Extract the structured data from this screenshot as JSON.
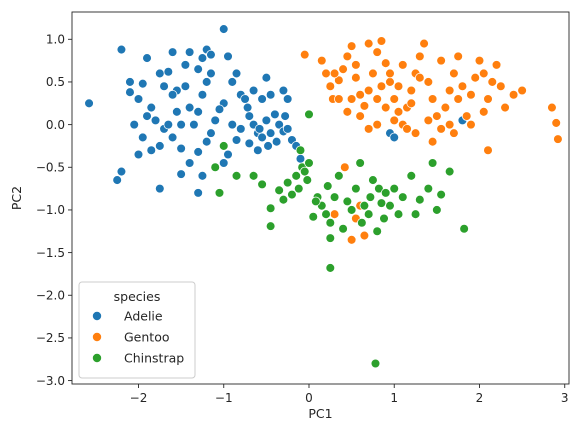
{
  "chart_data": {
    "type": "scatter",
    "xlabel": "PC1",
    "ylabel": "PC2",
    "xlim": [
      -2.78,
      3.05
    ],
    "ylim": [
      -3.04,
      1.32
    ],
    "xticks": [
      "−2",
      "−1",
      "0",
      "1",
      "2",
      "3"
    ],
    "xtick_values": [
      -2,
      -1,
      0,
      1,
      2,
      3
    ],
    "yticks": [
      "1.0",
      "0.5",
      "0.0",
      "−0.5",
      "−1.0",
      "−1.5",
      "−2.0",
      "−2.5",
      "−3.0"
    ],
    "ytick_values": [
      1.0,
      0.5,
      0.0,
      -0.5,
      -1.0,
      -1.5,
      -2.0,
      -2.5,
      -3.0
    ],
    "grid": false,
    "legend": {
      "title": "species",
      "placement": "lower-left"
    },
    "series": [
      {
        "name": "Adelie",
        "color": "#1f77b4",
        "points": [
          [
            -2.58,
            0.25
          ],
          [
            -2.2,
            0.88
          ],
          [
            -2.1,
            0.5
          ],
          [
            -2.1,
            0.38
          ],
          [
            -1.95,
            0.48
          ],
          [
            -1.9,
            0.78
          ],
          [
            -1.75,
            0.6
          ],
          [
            -1.65,
            0.62
          ],
          [
            -1.6,
            0.85
          ],
          [
            -1.55,
            0.4
          ],
          [
            -1.45,
            0.7
          ],
          [
            -1.4,
            0.85
          ],
          [
            -1.3,
            0.65
          ],
          [
            -1.25,
            0.78
          ],
          [
            -1.2,
            0.88
          ],
          [
            -1.15,
            0.82
          ],
          [
            -1.0,
            1.12
          ],
          [
            -0.9,
            0.5
          ],
          [
            -0.85,
            0.6
          ],
          [
            -0.8,
            0.35
          ],
          [
            -0.75,
            0.3
          ],
          [
            -0.72,
            0.2
          ],
          [
            -0.7,
            0.1
          ],
          [
            -0.65,
            0.0
          ],
          [
            -0.6,
            -0.1
          ],
          [
            -0.58,
            -0.05
          ],
          [
            -0.5,
            0.05
          ],
          [
            -0.45,
            -0.1
          ],
          [
            -0.4,
            0.12
          ],
          [
            -0.38,
            -0.2
          ],
          [
            -0.35,
            0.0
          ],
          [
            -0.3,
            -0.08
          ],
          [
            -0.28,
            0.1
          ],
          [
            -0.25,
            -0.05
          ],
          [
            -0.2,
            -0.18
          ],
          [
            -0.15,
            -0.25
          ],
          [
            -0.1,
            -0.4
          ],
          [
            -0.3,
            0.4
          ],
          [
            -0.45,
            0.35
          ],
          [
            -0.55,
            0.3
          ],
          [
            -1.0,
            0.25
          ],
          [
            -1.05,
            0.18
          ],
          [
            -1.1,
            0.05
          ],
          [
            -1.15,
            -0.1
          ],
          [
            -1.2,
            -0.2
          ],
          [
            -1.3,
            -0.32
          ],
          [
            -1.4,
            -0.45
          ],
          [
            -1.5,
            -0.28
          ],
          [
            -1.6,
            -0.15
          ],
          [
            -1.7,
            -0.05
          ],
          [
            -1.8,
            0.05
          ],
          [
            -1.85,
            0.2
          ],
          [
            -1.9,
            0.1
          ],
          [
            -2.0,
            0.3
          ],
          [
            -2.05,
            0.0
          ],
          [
            -1.95,
            -0.15
          ],
          [
            -2.0,
            -0.35
          ],
          [
            -1.85,
            -0.3
          ],
          [
            -1.75,
            -0.25
          ],
          [
            -2.2,
            -0.55
          ],
          [
            -2.25,
            -0.65
          ],
          [
            -1.75,
            -0.75
          ],
          [
            -1.5,
            -0.58
          ],
          [
            -1.3,
            -0.8
          ],
          [
            -1.25,
            -0.6
          ],
          [
            -1.0,
            -0.45
          ],
          [
            -0.95,
            -0.35
          ],
          [
            -0.85,
            -0.18
          ],
          [
            -0.8,
            -0.05
          ],
          [
            -0.7,
            -0.22
          ],
          [
            -0.6,
            -0.3
          ],
          [
            -0.55,
            -0.15
          ],
          [
            -0.48,
            -0.25
          ],
          [
            -1.2,
            0.5
          ],
          [
            -1.25,
            0.35
          ],
          [
            -1.3,
            0.15
          ],
          [
            -1.35,
            0.0
          ],
          [
            -1.4,
            0.2
          ],
          [
            -1.45,
            0.45
          ],
          [
            -1.55,
            0.15
          ],
          [
            -1.6,
            0.35
          ],
          [
            -1.65,
            0.0
          ],
          [
            -1.7,
            0.45
          ],
          [
            -1.5,
            0.0
          ],
          [
            -1.15,
            0.6
          ],
          [
            -0.95,
            0.8
          ],
          [
            -0.9,
            0.0
          ],
          [
            -0.65,
            0.4
          ],
          [
            -0.5,
            0.55
          ],
          [
            -0.25,
            0.3
          ],
          [
            0.95,
            -0.1
          ],
          [
            1.0,
            -0.15
          ],
          [
            1.8,
            0.05
          ],
          [
            2.2,
            0.7
          ]
        ]
      },
      {
        "name": "Gentoo",
        "color": "#ff7f0e",
        "points": [
          [
            -0.05,
            0.82
          ],
          [
            0.15,
            0.75
          ],
          [
            0.2,
            0.6
          ],
          [
            0.25,
            0.45
          ],
          [
            0.28,
            0.3
          ],
          [
            0.35,
            0.52
          ],
          [
            0.4,
            0.65
          ],
          [
            0.45,
            0.8
          ],
          [
            0.5,
            0.92
          ],
          [
            0.55,
            0.55
          ],
          [
            0.6,
            0.35
          ],
          [
            0.65,
            0.22
          ],
          [
            0.7,
            0.4
          ],
          [
            0.75,
            0.6
          ],
          [
            0.8,
            0.85
          ],
          [
            0.85,
            0.98
          ],
          [
            0.9,
            0.72
          ],
          [
            0.95,
            0.5
          ],
          [
            1.0,
            0.3
          ],
          [
            1.05,
            0.15
          ],
          [
            1.1,
            0.0
          ],
          [
            1.15,
            0.2
          ],
          [
            1.2,
            0.4
          ],
          [
            1.25,
            0.6
          ],
          [
            1.3,
            0.8
          ],
          [
            1.35,
            0.95
          ],
          [
            1.4,
            0.5
          ],
          [
            1.45,
            0.3
          ],
          [
            1.5,
            0.1
          ],
          [
            1.55,
            -0.05
          ],
          [
            1.6,
            0.2
          ],
          [
            1.65,
            0.4
          ],
          [
            1.7,
            0.6
          ],
          [
            1.75,
            0.3
          ],
          [
            1.8,
            0.45
          ],
          [
            1.85,
            0.1
          ],
          [
            1.9,
            0.35
          ],
          [
            1.95,
            0.55
          ],
          [
            2.0,
            0.75
          ],
          [
            2.05,
            0.6
          ],
          [
            2.1,
            0.3
          ],
          [
            2.15,
            0.5
          ],
          [
            2.2,
            0.7
          ],
          [
            2.25,
            0.45
          ],
          [
            2.3,
            0.2
          ],
          [
            2.4,
            0.35
          ],
          [
            2.5,
            0.4
          ],
          [
            2.85,
            0.2
          ],
          [
            2.9,
            0.02
          ],
          [
            2.92,
            -0.17
          ],
          [
            2.1,
            -0.3
          ],
          [
            1.9,
            0.0
          ],
          [
            1.7,
            -0.1
          ],
          [
            1.45,
            -0.2
          ],
          [
            1.25,
            -0.1
          ],
          [
            1.0,
            0.05
          ],
          [
            0.9,
            0.2
          ],
          [
            0.8,
            0.0
          ],
          [
            0.7,
            -0.05
          ],
          [
            0.6,
            0.1
          ],
          [
            0.5,
            0.3
          ],
          [
            0.45,
            0.15
          ],
          [
            0.35,
            0.3
          ],
          [
            0.3,
            0.6
          ],
          [
            0.55,
            0.7
          ],
          [
            0.7,
            0.95
          ],
          [
            1.1,
            0.7
          ],
          [
            1.3,
            0.55
          ],
          [
            1.55,
            0.75
          ],
          [
            1.75,
            0.8
          ],
          [
            1.2,
            0.25
          ],
          [
            0.95,
            0.6
          ],
          [
            1.05,
            0.45
          ],
          [
            1.4,
            0.05
          ],
          [
            1.65,
            0.0
          ],
          [
            2.05,
            0.15
          ],
          [
            0.42,
            -0.5
          ],
          [
            0.5,
            -1.35
          ],
          [
            0.55,
            -1.1
          ],
          [
            0.6,
            -0.95
          ],
          [
            0.65,
            -1.3
          ],
          [
            0.8,
            0.3
          ],
          [
            0.85,
            0.45
          ],
          [
            1.15,
            -0.05
          ],
          [
            0.3,
            -1.05
          ]
        ]
      },
      {
        "name": "Chinstrap",
        "color": "#2ca02c",
        "points": [
          [
            -1.1,
            -0.5
          ],
          [
            -1.05,
            -0.8
          ],
          [
            -1.0,
            -0.25
          ],
          [
            -0.85,
            -0.6
          ],
          [
            -0.45,
            -0.98
          ],
          [
            -0.45,
            -1.19
          ],
          [
            -0.35,
            -0.77
          ],
          [
            -0.3,
            -0.88
          ],
          [
            -0.25,
            -0.68
          ],
          [
            -0.2,
            -0.82
          ],
          [
            -0.15,
            -0.6
          ],
          [
            -0.12,
            -0.75
          ],
          [
            -0.08,
            -0.5
          ],
          [
            -0.05,
            -0.55
          ],
          [
            -0.02,
            -0.65
          ],
          [
            0.0,
            -0.45
          ],
          [
            0.0,
            0.12
          ],
          [
            0.05,
            -1.08
          ],
          [
            0.1,
            -0.85
          ],
          [
            0.15,
            -0.95
          ],
          [
            0.2,
            -1.05
          ],
          [
            0.22,
            -0.72
          ],
          [
            0.25,
            -1.15
          ],
          [
            0.25,
            -1.33
          ],
          [
            0.25,
            -1.68
          ],
          [
            0.3,
            -0.85
          ],
          [
            0.35,
            -0.6
          ],
          [
            0.4,
            -1.22
          ],
          [
            0.45,
            -0.9
          ],
          [
            0.5,
            -1.0
          ],
          [
            0.55,
            -0.75
          ],
          [
            0.6,
            -0.45
          ],
          [
            0.62,
            -1.15
          ],
          [
            0.65,
            -0.95
          ],
          [
            0.7,
            -1.05
          ],
          [
            0.72,
            -0.85
          ],
          [
            0.75,
            -0.65
          ],
          [
            0.8,
            -1.25
          ],
          [
            0.82,
            -0.75
          ],
          [
            0.85,
            -0.92
          ],
          [
            0.88,
            -1.1
          ],
          [
            0.9,
            -0.8
          ],
          [
            0.95,
            -0.95
          ],
          [
            1.0,
            -0.75
          ],
          [
            1.05,
            -1.05
          ],
          [
            1.1,
            -0.85
          ],
          [
            1.2,
            -0.6
          ],
          [
            1.25,
            -1.05
          ],
          [
            1.3,
            -0.88
          ],
          [
            1.4,
            -0.75
          ],
          [
            1.45,
            -0.45
          ],
          [
            1.5,
            -1.0
          ],
          [
            1.55,
            -0.82
          ],
          [
            1.65,
            -0.55
          ],
          [
            1.82,
            -1.22
          ],
          [
            0.78,
            -2.8
          ],
          [
            -0.55,
            -0.7
          ],
          [
            -0.65,
            -0.6
          ],
          [
            -0.1,
            -0.3
          ],
          [
            0.08,
            -0.9
          ]
        ]
      }
    ]
  }
}
